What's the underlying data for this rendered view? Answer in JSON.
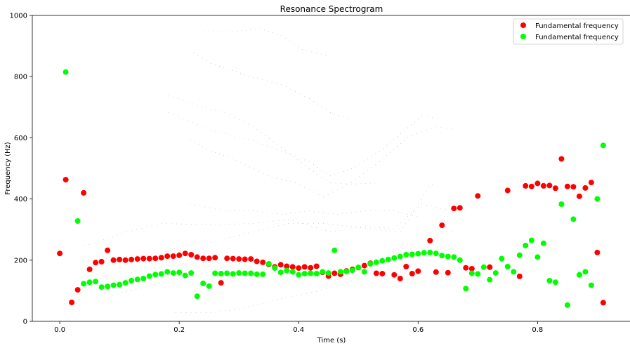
{
  "chart_data": {
    "type": "scatter",
    "title": "Resonance Spectrogram",
    "xlabel": "Time (s)",
    "ylabel": "Frequency (Hz)",
    "xlim": [
      -0.046,
      0.956
    ],
    "ylim": [
      0,
      1000
    ],
    "x_ticks": [
      0.0,
      0.2,
      0.4,
      0.6,
      0.8
    ],
    "x_tick_labels": [
      "0.0",
      "0.2",
      "0.4",
      "0.6",
      "0.8"
    ],
    "y_ticks": [
      0,
      200,
      400,
      600,
      800,
      1000
    ],
    "y_tick_labels": [
      "0",
      "200",
      "400",
      "600",
      "800",
      "1000"
    ],
    "grid": false,
    "legend_position": "top-right",
    "series": [
      {
        "name": "Fundamental frequency",
        "color": "#ff0000",
        "points": [
          [
            0.0,
            222
          ],
          [
            0.01,
            463
          ],
          [
            0.02,
            62
          ],
          [
            0.03,
            103
          ],
          [
            0.04,
            420
          ],
          [
            0.05,
            170
          ],
          [
            0.06,
            192
          ],
          [
            0.07,
            195
          ],
          [
            0.08,
            232
          ],
          [
            0.09,
            200
          ],
          [
            0.1,
            202
          ],
          [
            0.11,
            200
          ],
          [
            0.12,
            202
          ],
          [
            0.13,
            204
          ],
          [
            0.14,
            205
          ],
          [
            0.15,
            205
          ],
          [
            0.16,
            206
          ],
          [
            0.17,
            208
          ],
          [
            0.18,
            213
          ],
          [
            0.19,
            213
          ],
          [
            0.2,
            216
          ],
          [
            0.21,
            222
          ],
          [
            0.22,
            218
          ],
          [
            0.23,
            210
          ],
          [
            0.24,
            206
          ],
          [
            0.25,
            206
          ],
          [
            0.26,
            208
          ],
          [
            0.27,
            126
          ],
          [
            0.28,
            206
          ],
          [
            0.29,
            205
          ],
          [
            0.3,
            204
          ],
          [
            0.31,
            203
          ],
          [
            0.32,
            204
          ],
          [
            0.33,
            196
          ],
          [
            0.34,
            193
          ],
          [
            0.35,
            186
          ],
          [
            0.36,
            178
          ],
          [
            0.37,
            185
          ],
          [
            0.38,
            180
          ],
          [
            0.39,
            178
          ],
          [
            0.4,
            174
          ],
          [
            0.41,
            178
          ],
          [
            0.42,
            175
          ],
          [
            0.43,
            180
          ],
          [
            0.44,
            160
          ],
          [
            0.45,
            148
          ],
          [
            0.46,
            157
          ],
          [
            0.47,
            154
          ],
          [
            0.48,
            165
          ],
          [
            0.49,
            170
          ],
          [
            0.5,
            176
          ],
          [
            0.51,
            182
          ],
          [
            0.52,
            190
          ],
          [
            0.53,
            157
          ],
          [
            0.54,
            156
          ],
          [
            0.56,
            152
          ],
          [
            0.57,
            140
          ],
          [
            0.58,
            179
          ],
          [
            0.59,
            156
          ],
          [
            0.6,
            164
          ],
          [
            0.62,
            264
          ],
          [
            0.63,
            161
          ],
          [
            0.64,
            314
          ],
          [
            0.65,
            159
          ],
          [
            0.66,
            369
          ],
          [
            0.67,
            371
          ],
          [
            0.68,
            175
          ],
          [
            0.69,
            172
          ],
          [
            0.7,
            410
          ],
          [
            0.72,
            177
          ],
          [
            0.75,
            428
          ],
          [
            0.77,
            147
          ],
          [
            0.78,
            443
          ],
          [
            0.79,
            441
          ],
          [
            0.8,
            451
          ],
          [
            0.81,
            443
          ],
          [
            0.82,
            444
          ],
          [
            0.83,
            435
          ],
          [
            0.84,
            531
          ],
          [
            0.85,
            441
          ],
          [
            0.86,
            440
          ],
          [
            0.87,
            409
          ],
          [
            0.88,
            436
          ],
          [
            0.89,
            454
          ],
          [
            0.9,
            225
          ],
          [
            0.91,
            61
          ]
        ]
      },
      {
        "name": "Fundamental frequency",
        "color": "#00ff00",
        "points": [
          [
            0.01,
            815
          ],
          [
            0.03,
            328
          ],
          [
            0.04,
            123
          ],
          [
            0.05,
            128
          ],
          [
            0.06,
            130
          ],
          [
            0.07,
            112
          ],
          [
            0.08,
            114
          ],
          [
            0.09,
            118
          ],
          [
            0.1,
            120
          ],
          [
            0.11,
            126
          ],
          [
            0.12,
            133
          ],
          [
            0.13,
            137
          ],
          [
            0.14,
            140
          ],
          [
            0.15,
            148
          ],
          [
            0.16,
            153
          ],
          [
            0.17,
            155
          ],
          [
            0.18,
            162
          ],
          [
            0.19,
            158
          ],
          [
            0.2,
            160
          ],
          [
            0.21,
            150
          ],
          [
            0.22,
            158
          ],
          [
            0.23,
            82
          ],
          [
            0.24,
            124
          ],
          [
            0.25,
            115
          ],
          [
            0.26,
            157
          ],
          [
            0.27,
            156
          ],
          [
            0.28,
            157
          ],
          [
            0.29,
            155
          ],
          [
            0.3,
            158
          ],
          [
            0.31,
            157
          ],
          [
            0.32,
            157
          ],
          [
            0.33,
            154
          ],
          [
            0.34,
            154
          ],
          [
            0.35,
            188
          ],
          [
            0.36,
            174
          ],
          [
            0.37,
            160
          ],
          [
            0.38,
            166
          ],
          [
            0.39,
            162
          ],
          [
            0.4,
            152
          ],
          [
            0.41,
            156
          ],
          [
            0.42,
            157
          ],
          [
            0.43,
            156
          ],
          [
            0.44,
            162
          ],
          [
            0.45,
            158
          ],
          [
            0.46,
            232
          ],
          [
            0.47,
            162
          ],
          [
            0.48,
            163
          ],
          [
            0.49,
            167
          ],
          [
            0.5,
            176
          ],
          [
            0.51,
            162
          ],
          [
            0.52,
            188
          ],
          [
            0.53,
            193
          ],
          [
            0.54,
            198
          ],
          [
            0.55,
            202
          ],
          [
            0.56,
            207
          ],
          [
            0.57,
            212
          ],
          [
            0.58,
            218
          ],
          [
            0.59,
            219
          ],
          [
            0.6,
            221
          ],
          [
            0.61,
            224
          ],
          [
            0.62,
            225
          ],
          [
            0.63,
            222
          ],
          [
            0.64,
            215
          ],
          [
            0.65,
            212
          ],
          [
            0.66,
            210
          ],
          [
            0.67,
            200
          ],
          [
            0.68,
            107
          ],
          [
            0.69,
            157
          ],
          [
            0.7,
            155
          ],
          [
            0.71,
            177
          ],
          [
            0.72,
            136
          ],
          [
            0.73,
            158
          ],
          [
            0.74,
            205
          ],
          [
            0.75,
            179
          ],
          [
            0.76,
            162
          ],
          [
            0.77,
            216
          ],
          [
            0.78,
            248
          ],
          [
            0.79,
            265
          ],
          [
            0.8,
            210
          ],
          [
            0.81,
            255
          ],
          [
            0.82,
            133
          ],
          [
            0.83,
            128
          ],
          [
            0.84,
            383
          ],
          [
            0.85,
            53
          ],
          [
            0.86,
            334
          ],
          [
            0.87,
            152
          ],
          [
            0.88,
            162
          ],
          [
            0.89,
            118
          ],
          [
            0.9,
            400
          ],
          [
            0.91,
            575
          ]
        ]
      }
    ]
  }
}
